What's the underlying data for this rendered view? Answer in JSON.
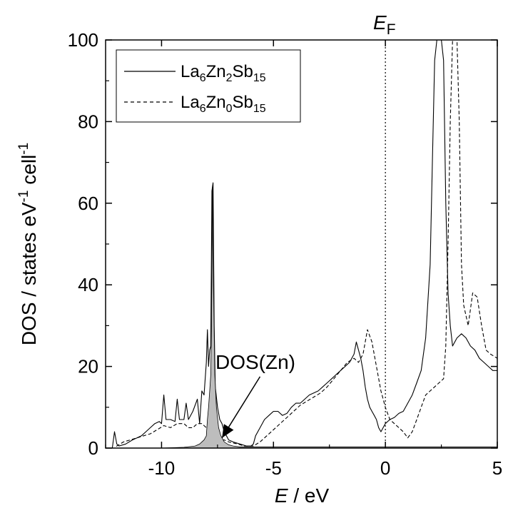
{
  "chart_data": {
    "type": "line",
    "title": "",
    "xlabel": {
      "italic": "E",
      "rest": " / eV"
    },
    "ylabel": {
      "text": "DOS / states eV",
      "sup1": "-1",
      "mid": " cell",
      "sup2": "-1"
    },
    "xlim": [
      -12.5,
      5
    ],
    "ylim": [
      0,
      100
    ],
    "xticks": [
      -10,
      -5,
      0,
      5
    ],
    "yticks": [
      0,
      20,
      40,
      60,
      80,
      100
    ],
    "grid": false,
    "fermi": {
      "x": 0,
      "label_main": "E",
      "label_sub": "F",
      "style": "dotted"
    },
    "legend": {
      "placement": "top-left",
      "entries": [
        {
          "parts": [
            "La",
            "6",
            "Zn",
            "2",
            "Sb",
            "15"
          ],
          "style": "solid"
        },
        {
          "parts": [
            "La",
            "6",
            "Zn",
            "0",
            "Sb",
            "15"
          ],
          "style": "dashed"
        }
      ]
    },
    "annotation": {
      "text": "DOS(Zn)",
      "arrow_from": [
        -5.6,
        17.5
      ],
      "arrow_to": [
        -7.3,
        2.5
      ]
    },
    "series": [
      {
        "id": "la6zn2sb15",
        "style": "solid",
        "points": [
          [
            -12.5,
            0
          ],
          [
            -12.2,
            0
          ],
          [
            -12.1,
            4
          ],
          [
            -12.0,
            1
          ],
          [
            -11.9,
            0.5
          ],
          [
            -11.6,
            1
          ],
          [
            -11.3,
            2
          ],
          [
            -11.1,
            2.5
          ],
          [
            -10.9,
            3
          ],
          [
            -10.7,
            4
          ],
          [
            -10.5,
            5
          ],
          [
            -10.3,
            6
          ],
          [
            -10.1,
            6.5
          ],
          [
            -10.0,
            6
          ],
          [
            -9.9,
            13
          ],
          [
            -9.8,
            7
          ],
          [
            -9.6,
            7
          ],
          [
            -9.4,
            6.5
          ],
          [
            -9.3,
            12
          ],
          [
            -9.2,
            7
          ],
          [
            -9.0,
            7
          ],
          [
            -8.9,
            11
          ],
          [
            -8.8,
            7
          ],
          [
            -8.6,
            9
          ],
          [
            -8.4,
            12
          ],
          [
            -8.3,
            6
          ],
          [
            -8.2,
            14
          ],
          [
            -8.1,
            13
          ],
          [
            -8.0,
            21
          ],
          [
            -7.95,
            29
          ],
          [
            -7.9,
            20
          ],
          [
            -7.85,
            24
          ],
          [
            -7.8,
            25
          ],
          [
            -7.75,
            63
          ],
          [
            -7.7,
            65
          ],
          [
            -7.65,
            30
          ],
          [
            -7.6,
            15
          ],
          [
            -7.5,
            10
          ],
          [
            -7.4,
            7
          ],
          [
            -7.3,
            6
          ],
          [
            -7.2,
            4
          ],
          [
            -7.1,
            3
          ],
          [
            -7.0,
            2
          ],
          [
            -6.8,
            1.5
          ],
          [
            -6.5,
            1
          ],
          [
            -6.2,
            0.5
          ],
          [
            -6.0,
            0.5
          ],
          [
            -5.9,
            1
          ],
          [
            -5.8,
            3
          ],
          [
            -5.6,
            5
          ],
          [
            -5.4,
            7
          ],
          [
            -5.2,
            8
          ],
          [
            -5.0,
            9
          ],
          [
            -4.8,
            9
          ],
          [
            -4.6,
            8
          ],
          [
            -4.4,
            8.5
          ],
          [
            -4.2,
            10
          ],
          [
            -4.0,
            11
          ],
          [
            -3.8,
            11
          ],
          [
            -3.6,
            12
          ],
          [
            -3.4,
            13
          ],
          [
            -3.2,
            13.5
          ],
          [
            -3.0,
            14
          ],
          [
            -2.8,
            15
          ],
          [
            -2.6,
            16
          ],
          [
            -2.4,
            17
          ],
          [
            -2.2,
            18
          ],
          [
            -2.0,
            19
          ],
          [
            -1.8,
            20
          ],
          [
            -1.6,
            21
          ],
          [
            -1.4,
            23
          ],
          [
            -1.3,
            26
          ],
          [
            -1.2,
            24
          ],
          [
            -1.1,
            22
          ],
          [
            -1.0,
            19
          ],
          [
            -0.9,
            15
          ],
          [
            -0.8,
            12
          ],
          [
            -0.7,
            10
          ],
          [
            -0.6,
            9
          ],
          [
            -0.5,
            8
          ],
          [
            -0.4,
            7
          ],
          [
            -0.3,
            5
          ],
          [
            -0.2,
            4
          ],
          [
            -0.1,
            5
          ],
          [
            0.0,
            6
          ],
          [
            0.2,
            7
          ],
          [
            0.4,
            7.5
          ],
          [
            0.6,
            8.5
          ],
          [
            0.8,
            9
          ],
          [
            1.0,
            11
          ],
          [
            1.2,
            13
          ],
          [
            1.4,
            16
          ],
          [
            1.6,
            19
          ],
          [
            1.8,
            27
          ],
          [
            2.0,
            45
          ],
          [
            2.1,
            70
          ],
          [
            2.2,
            95
          ],
          [
            2.3,
            100
          ],
          [
            2.5,
            100
          ],
          [
            2.6,
            95
          ],
          [
            2.7,
            60
          ],
          [
            2.8,
            38
          ],
          [
            2.9,
            30
          ],
          [
            3.0,
            25
          ],
          [
            3.2,
            27
          ],
          [
            3.4,
            28
          ],
          [
            3.6,
            27
          ],
          [
            3.8,
            25
          ],
          [
            4.0,
            24
          ],
          [
            4.2,
            22
          ],
          [
            4.4,
            21
          ],
          [
            4.6,
            20
          ],
          [
            4.8,
            19
          ],
          [
            5.0,
            19
          ]
        ]
      },
      {
        "id": "la6zn0sb15",
        "style": "dashed",
        "points": [
          [
            -12.5,
            0
          ],
          [
            -12.1,
            0
          ],
          [
            -12.0,
            0.5
          ],
          [
            -11.7,
            1.5
          ],
          [
            -11.4,
            2
          ],
          [
            -11.1,
            2.5
          ],
          [
            -10.8,
            3
          ],
          [
            -10.5,
            3.5
          ],
          [
            -10.2,
            4.5
          ],
          [
            -9.9,
            5.5
          ],
          [
            -9.6,
            5
          ],
          [
            -9.3,
            6
          ],
          [
            -9.0,
            6
          ],
          [
            -8.8,
            5
          ],
          [
            -8.6,
            5
          ],
          [
            -8.4,
            6
          ],
          [
            -8.2,
            6
          ],
          [
            -8.0,
            5
          ],
          [
            -7.9,
            4
          ],
          [
            -7.8,
            2
          ],
          [
            -7.6,
            2
          ],
          [
            -7.4,
            2
          ],
          [
            -7.2,
            2
          ],
          [
            -7.0,
            1.5
          ],
          [
            -6.6,
            1
          ],
          [
            -6.3,
            0.5
          ],
          [
            -5.9,
            0.5
          ],
          [
            -5.6,
            1.5
          ],
          [
            -5.3,
            3
          ],
          [
            -5.0,
            4.5
          ],
          [
            -4.7,
            6
          ],
          [
            -4.4,
            7.5
          ],
          [
            -4.1,
            9
          ],
          [
            -3.8,
            10.5
          ],
          [
            -3.5,
            11.5
          ],
          [
            -3.2,
            12.5
          ],
          [
            -2.9,
            13.5
          ],
          [
            -2.6,
            15
          ],
          [
            -2.3,
            17
          ],
          [
            -2.0,
            19
          ],
          [
            -1.7,
            21
          ],
          [
            -1.4,
            22
          ],
          [
            -1.2,
            21
          ],
          [
            -1.0,
            23
          ],
          [
            -0.8,
            29
          ],
          [
            -0.6,
            26
          ],
          [
            -0.4,
            20
          ],
          [
            -0.2,
            14
          ],
          [
            0.0,
            10
          ],
          [
            0.2,
            7
          ],
          [
            0.4,
            6
          ],
          [
            0.6,
            5
          ],
          [
            0.8,
            4
          ],
          [
            1.0,
            2.5
          ],
          [
            1.2,
            4
          ],
          [
            1.4,
            7
          ],
          [
            1.6,
            10
          ],
          [
            1.8,
            13
          ],
          [
            2.0,
            14
          ],
          [
            2.2,
            15
          ],
          [
            2.4,
            16
          ],
          [
            2.6,
            17
          ],
          [
            2.7,
            25
          ],
          [
            2.8,
            50
          ],
          [
            2.9,
            80
          ],
          [
            3.0,
            100
          ],
          [
            3.2,
            100
          ],
          [
            3.3,
            80
          ],
          [
            3.4,
            45
          ],
          [
            3.5,
            35
          ],
          [
            3.7,
            30
          ],
          [
            3.9,
            38
          ],
          [
            4.1,
            37
          ],
          [
            4.3,
            30
          ],
          [
            4.5,
            24
          ],
          [
            4.7,
            23
          ],
          [
            5.0,
            22
          ]
        ]
      },
      {
        "id": "dos-zn",
        "style": "filled-gray",
        "points": [
          [
            -12.5,
            0
          ],
          [
            -10.0,
            0
          ],
          [
            -9.0,
            0.2
          ],
          [
            -8.5,
            0.5
          ],
          [
            -8.3,
            1
          ],
          [
            -8.1,
            2
          ],
          [
            -8.0,
            3
          ],
          [
            -7.95,
            7
          ],
          [
            -7.9,
            10
          ],
          [
            -7.85,
            14
          ],
          [
            -7.8,
            18
          ],
          [
            -7.77,
            30
          ],
          [
            -7.72,
            64
          ],
          [
            -7.68,
            40
          ],
          [
            -7.62,
            18
          ],
          [
            -7.55,
            10
          ],
          [
            -7.45,
            5
          ],
          [
            -7.35,
            3
          ],
          [
            -7.2,
            1.5
          ],
          [
            -7.0,
            0.8
          ],
          [
            -6.8,
            0.5
          ],
          [
            -6.5,
            0.3
          ],
          [
            -6.0,
            0.3
          ],
          [
            -5.0,
            0.3
          ],
          [
            0.0,
            0.3
          ],
          [
            3.0,
            0.3
          ],
          [
            5.0,
            0.3
          ]
        ]
      }
    ]
  }
}
